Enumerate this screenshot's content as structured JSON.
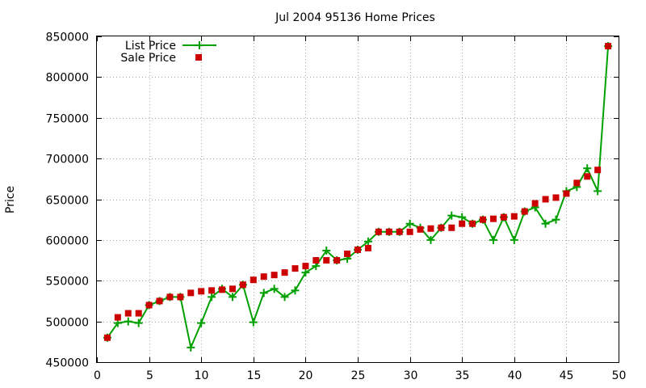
{
  "chart_data": {
    "type": "line",
    "title": "Jul 2004 95136 Home Prices",
    "xlabel": "",
    "ylabel": "Price",
    "xlim": [
      0,
      50
    ],
    "ylim": [
      450000,
      850000
    ],
    "xticks": [
      0,
      5,
      10,
      15,
      20,
      25,
      30,
      35,
      40,
      45,
      50
    ],
    "yticks": [
      450000,
      500000,
      550000,
      600000,
      650000,
      700000,
      750000,
      800000,
      850000
    ],
    "grid": true,
    "legend_position": "top-left",
    "series": [
      {
        "name": "List Price",
        "style": "line+cross",
        "color": "#00a000",
        "x": [
          1,
          2,
          3,
          4,
          5,
          6,
          7,
          8,
          9,
          10,
          11,
          12,
          13,
          14,
          15,
          16,
          17,
          18,
          19,
          20,
          21,
          22,
          23,
          24,
          25,
          26,
          27,
          28,
          29,
          30,
          31,
          32,
          33,
          34,
          35,
          36,
          37,
          38,
          39,
          40,
          41,
          42,
          43,
          44,
          45,
          46,
          47,
          48,
          49
        ],
        "values": [
          480000,
          498000,
          500000,
          498000,
          520000,
          525000,
          530000,
          530000,
          468000,
          498000,
          530000,
          540000,
          530000,
          545000,
          499000,
          535000,
          540000,
          530000,
          538000,
          560000,
          568000,
          587000,
          575000,
          577000,
          588000,
          598000,
          610000,
          610000,
          610000,
          620000,
          615000,
          600000,
          615000,
          630000,
          628000,
          620000,
          625000,
          600000,
          628000,
          600000,
          635000,
          640000,
          620000,
          625000,
          660000,
          665000,
          688000,
          660000,
          838000
        ]
      },
      {
        "name": "Sale Price",
        "style": "square",
        "color": "#cc0000",
        "x": [
          1,
          2,
          3,
          4,
          5,
          6,
          7,
          8,
          9,
          10,
          11,
          12,
          13,
          14,
          15,
          16,
          17,
          18,
          19,
          20,
          21,
          22,
          23,
          24,
          25,
          26,
          27,
          28,
          29,
          30,
          31,
          32,
          33,
          34,
          35,
          36,
          37,
          38,
          39,
          40,
          41,
          42,
          43,
          44,
          45,
          46,
          47,
          48,
          49
        ],
        "values": [
          480000,
          505000,
          510000,
          510000,
          520000,
          525000,
          530000,
          530000,
          535000,
          537000,
          538000,
          539000,
          540000,
          545000,
          551000,
          555000,
          557000,
          560000,
          565000,
          568000,
          575000,
          575000,
          575000,
          583000,
          588000,
          590000,
          610000,
          610000,
          610000,
          610000,
          613000,
          614000,
          615000,
          615000,
          620000,
          620000,
          625000,
          626000,
          628000,
          629000,
          635000,
          645000,
          650000,
          652000,
          657000,
          670000,
          678000,
          686000,
          838000
        ]
      }
    ]
  }
}
